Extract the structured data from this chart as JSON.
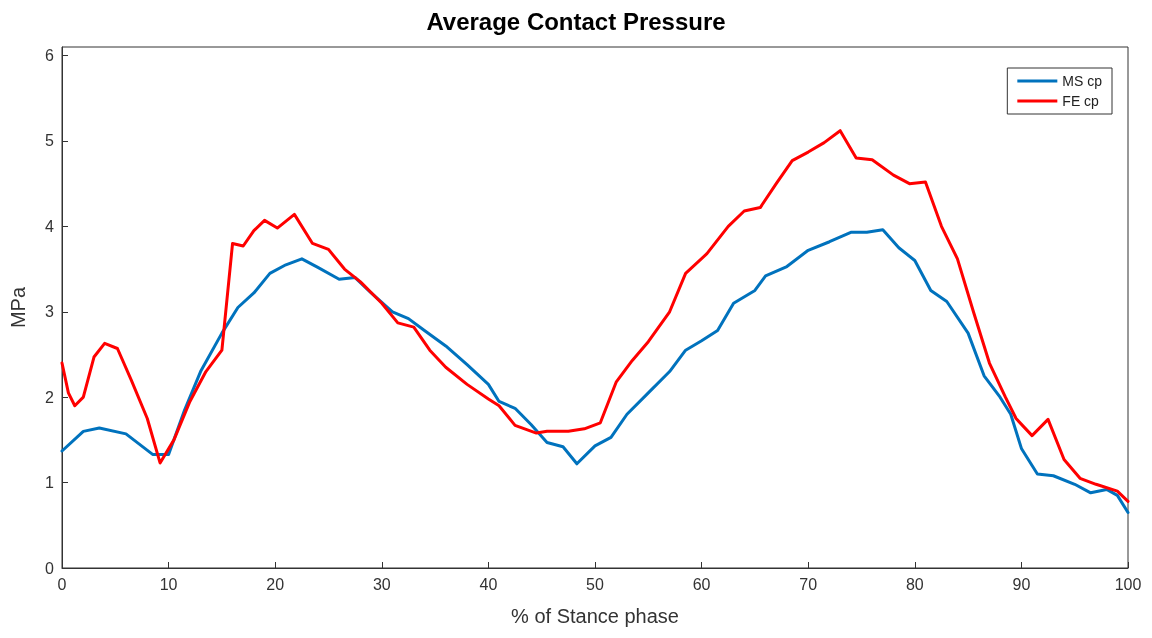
{
  "chart_data": {
    "type": "line",
    "title": "Average Contact Pressure",
    "xlabel": "% of Stance phase",
    "ylabel": "MPa",
    "xlim": [
      0,
      100
    ],
    "xticks": [
      0,
      10,
      20,
      30,
      40,
      50,
      60,
      70,
      80,
      90,
      100
    ],
    "ylim": [
      0,
      6.1
    ],
    "yticks": [
      0,
      1,
      2,
      3,
      4,
      5,
      6
    ],
    "grid": false,
    "legend": "top right",
    "marker": "none",
    "line_style": "solid",
    "series": [
      {
        "name": "MS cp",
        "color": "#0072bd",
        "x": [
          0,
          2,
          3.5,
          6,
          8.5,
          10,
          11.5,
          13,
          15,
          16.5,
          18,
          19.5,
          21,
          22.5,
          24,
          26,
          27.5,
          29,
          31,
          32.5,
          34,
          36,
          38,
          40,
          41,
          42.5,
          44,
          45.5,
          47,
          48.3,
          50,
          51.5,
          53,
          55,
          57,
          58.5,
          60,
          61.5,
          63,
          65,
          66,
          68,
          70,
          72,
          74,
          75.5,
          77,
          78.5,
          80,
          81.5,
          83,
          85,
          86.5,
          88,
          89,
          90,
          91.5,
          93,
          95,
          96.5,
          98,
          99,
          100
        ],
        "values": [
          1.37,
          1.6,
          1.64,
          1.57,
          1.33,
          1.33,
          1.85,
          2.3,
          2.75,
          3.05,
          3.22,
          3.45,
          3.55,
          3.62,
          3.52,
          3.38,
          3.4,
          3.22,
          3.0,
          2.92,
          2.78,
          2.6,
          2.38,
          2.15,
          1.95,
          1.87,
          1.68,
          1.47,
          1.42,
          1.22,
          1.43,
          1.53,
          1.8,
          2.05,
          2.3,
          2.55,
          2.66,
          2.78,
          3.1,
          3.25,
          3.42,
          3.53,
          3.72,
          3.82,
          3.93,
          3.93,
          3.96,
          3.75,
          3.6,
          3.25,
          3.12,
          2.75,
          2.25,
          2.0,
          1.8,
          1.4,
          1.1,
          1.08,
          0.98,
          0.88,
          0.92,
          0.85,
          0.65
        ]
      },
      {
        "name": "FE cp",
        "color": "#ff0000",
        "x": [
          0,
          0.6,
          1.2,
          2,
          3,
          4,
          5.2,
          6.5,
          8,
          9.2,
          10.5,
          12,
          13.5,
          15,
          16,
          17,
          18,
          19,
          20.2,
          21.8,
          23.5,
          25,
          26.5,
          28,
          30,
          31.5,
          33,
          34.5,
          36,
          38,
          40,
          41,
          42.5,
          44.5,
          45.5,
          47.5,
          49,
          50.5,
          52,
          53.5,
          55,
          57,
          58.5,
          60.5,
          62.5,
          64,
          65.5,
          67,
          68.5,
          70,
          71.5,
          73,
          74.5,
          76,
          78,
          79.5,
          81,
          82.5,
          84,
          85.5,
          87,
          88.5,
          89.5,
          91,
          92.5,
          94,
          95.5,
          97,
          99,
          100
        ],
        "values": [
          2.4,
          2.05,
          1.9,
          2.0,
          2.47,
          2.63,
          2.57,
          2.2,
          1.75,
          1.23,
          1.5,
          1.95,
          2.3,
          2.55,
          3.8,
          3.77,
          3.95,
          4.07,
          3.98,
          4.14,
          3.8,
          3.73,
          3.5,
          3.35,
          3.1,
          2.87,
          2.82,
          2.55,
          2.35,
          2.15,
          1.98,
          1.9,
          1.67,
          1.58,
          1.6,
          1.6,
          1.63,
          1.7,
          2.18,
          2.43,
          2.65,
          3.0,
          3.45,
          3.68,
          4.0,
          4.18,
          4.22,
          4.5,
          4.77,
          4.87,
          4.98,
          5.12,
          4.8,
          4.78,
          4.6,
          4.5,
          4.52,
          4.0,
          3.62,
          3.0,
          2.4,
          2.0,
          1.75,
          1.55,
          1.74,
          1.27,
          1.05,
          0.98,
          0.9,
          0.78
        ]
      }
    ]
  }
}
